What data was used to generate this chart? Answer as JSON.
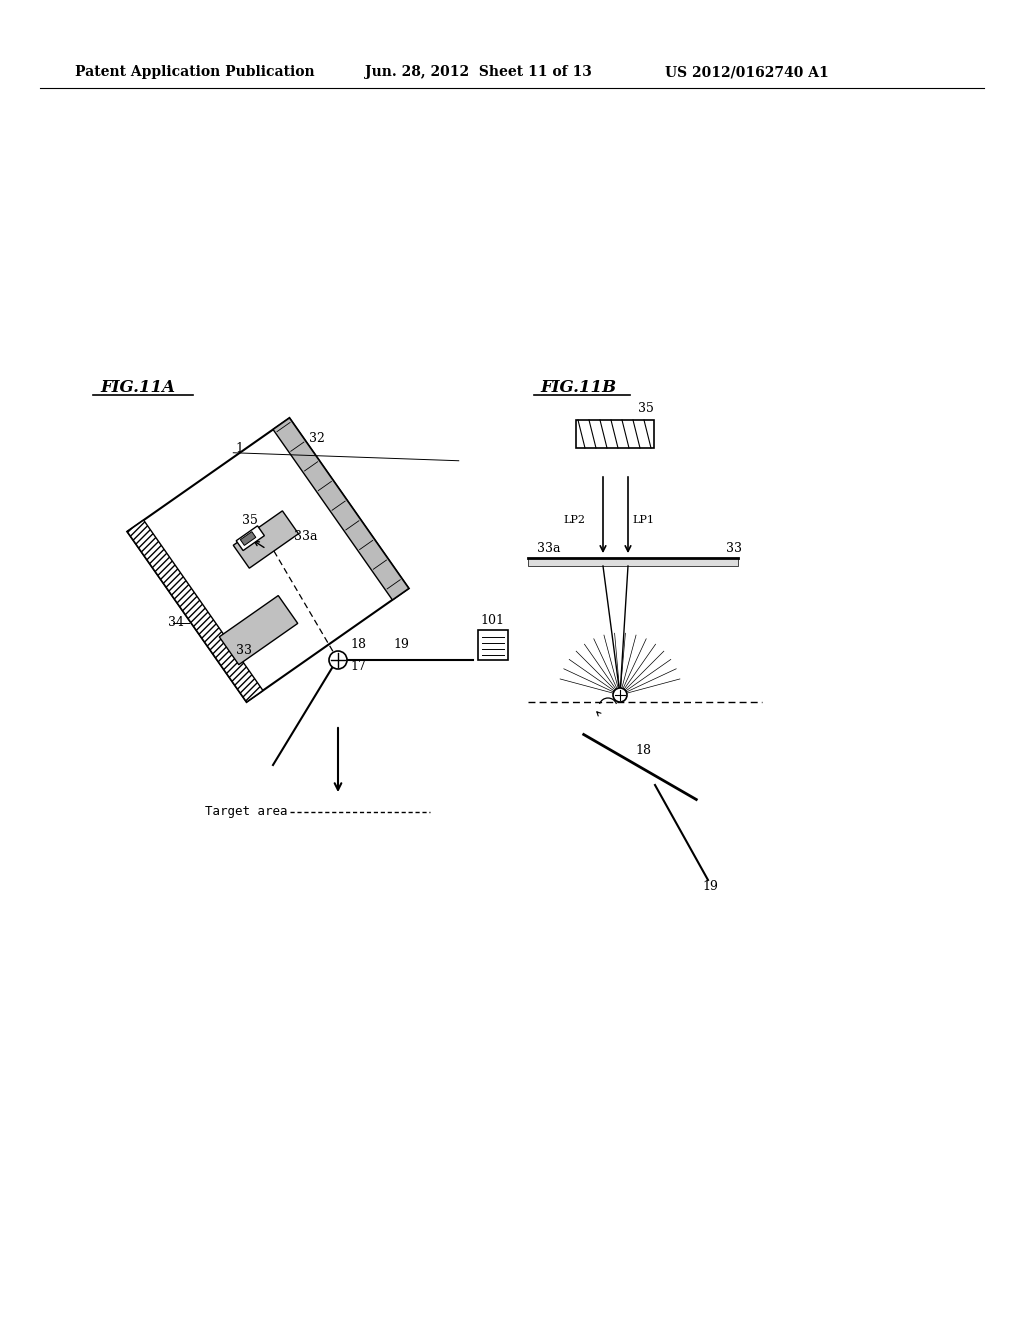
{
  "bg_color": "#ffffff",
  "header_text": "Patent Application Publication",
  "header_date": "Jun. 28, 2012  Sheet 11 of 13",
  "header_patent": "US 2012/0162740 A1",
  "fig11a_label": "FIG.11A",
  "fig11b_label": "FIG.11B"
}
